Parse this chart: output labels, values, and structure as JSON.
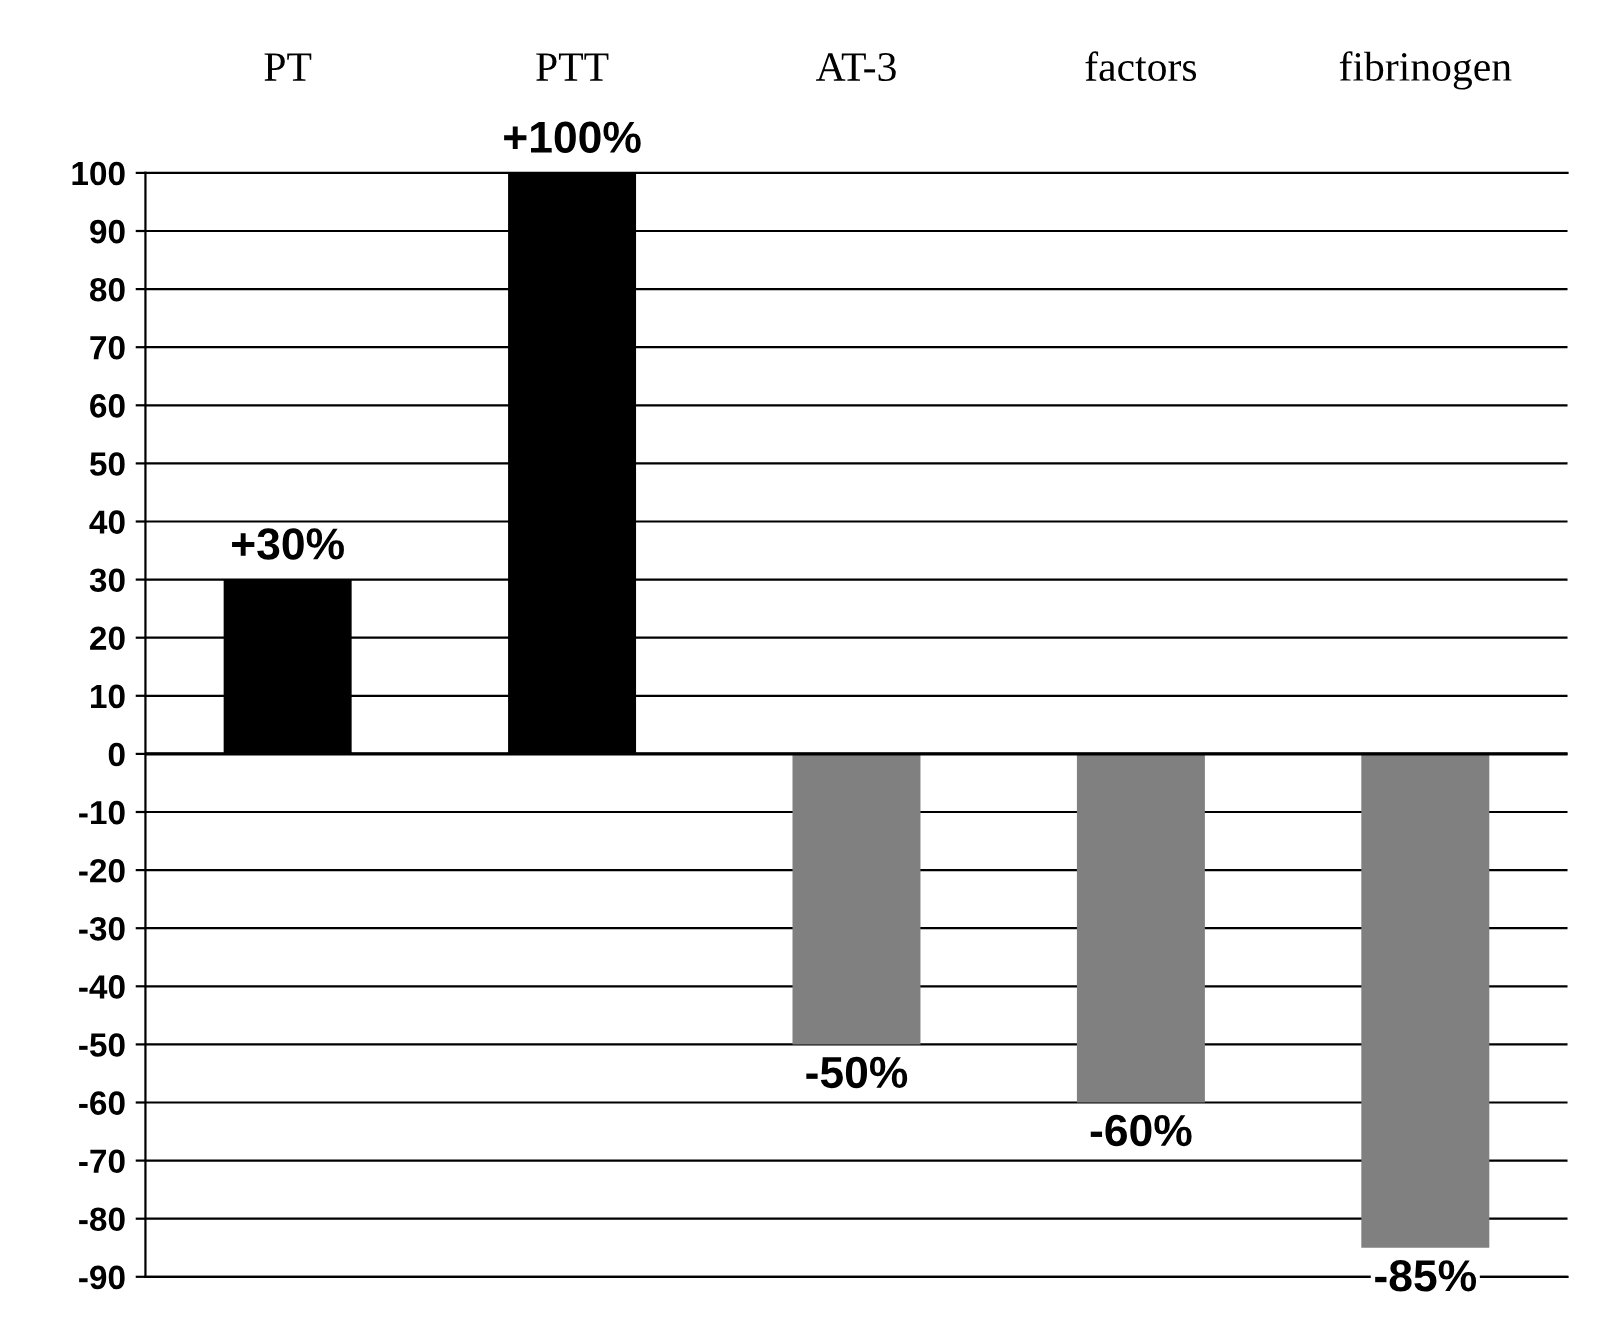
{
  "chart_data": {
    "type": "bar",
    "categories": [
      "PT",
      "PTT",
      "AT-3",
      "factors",
      "fibrinogen"
    ],
    "values": [
      30,
      100,
      -50,
      -60,
      -85
    ],
    "colors": [
      "#000000",
      "#000000",
      "#808080",
      "#808080",
      "#808080"
    ],
    "value_labels": [
      "+30%",
      "+100%",
      "-50%",
      "-60%",
      "-85%"
    ],
    "ylim": [
      -90,
      100
    ],
    "yticks": [
      -90,
      -80,
      -70,
      -60,
      -50,
      -40,
      -30,
      -20,
      -10,
      0,
      10,
      20,
      30,
      40,
      50,
      60,
      70,
      80,
      90,
      100
    ],
    "grid": "y"
  }
}
